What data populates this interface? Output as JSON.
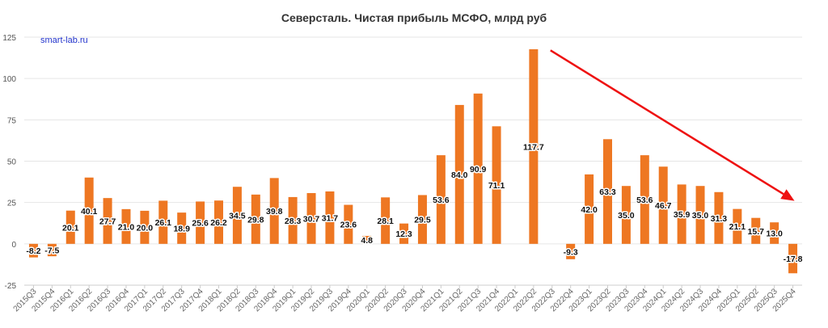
{
  "title": "Северсталь. Чистая прибыль МСФО, млрд руб",
  "watermark": "smart-lab.ru",
  "colors": {
    "bar": "#ee7722",
    "grid": "#e6e6e6",
    "axis": "#cccccc",
    "arrow": "#ee1111"
  },
  "chart_data": {
    "type": "bar",
    "title": "Северсталь. Чистая прибыль МСФО, млрд руб",
    "xlabel": "",
    "ylabel": "",
    "ylim": [
      -25,
      125
    ],
    "yticks": [
      -25,
      0,
      25,
      50,
      75,
      100,
      125
    ],
    "grid": true,
    "categories": [
      "2015Q3",
      "2015Q4",
      "2016Q1",
      "2016Q2",
      "2016Q3",
      "2016Q4",
      "2017Q1",
      "2017Q2",
      "2017Q3",
      "2017Q4",
      "2018Q1",
      "2018Q2",
      "2018Q3",
      "2018Q4",
      "2019Q1",
      "2019Q2",
      "2019Q3",
      "2019Q4",
      "2020Q1",
      "2020Q2",
      "2020Q3",
      "2020Q4",
      "2021Q1",
      "2021Q2",
      "2021Q3",
      "2021Q4",
      "2022Q1",
      "2022Q2",
      "2022Q3",
      "2022Q4",
      "2023Q1",
      "2023Q2",
      "2023Q3",
      "2023Q4",
      "2024Q1",
      "2024Q2",
      "2024Q3",
      "2024Q4",
      "2025Q1",
      "2025Q2",
      "2025Q3",
      "2025Q4"
    ],
    "values": [
      -8.2,
      -7.5,
      20.1,
      40.1,
      27.7,
      21.0,
      20.0,
      26.1,
      18.9,
      25.6,
      26.2,
      34.5,
      29.8,
      39.8,
      28.3,
      30.7,
      31.7,
      23.6,
      4.8,
      28.1,
      12.3,
      29.5,
      53.6,
      84.0,
      90.9,
      71.1,
      null,
      117.7,
      null,
      -9.3,
      42.0,
      63.3,
      35.0,
      53.6,
      46.7,
      35.9,
      35.0,
      31.3,
      21.1,
      15.7,
      13.0,
      -17.8
    ],
    "labels": [
      "-8.2",
      "-7.5",
      "20.1",
      "40.1",
      "27.7",
      "21.0",
      "20.0",
      "26.1",
      "18.9",
      "25.6",
      "26.2",
      "34.5",
      "29.8",
      "39.8",
      "28.3",
      "30.7",
      "31.7",
      "23.6",
      "4.8",
      "28.1",
      "12.3",
      "29.5",
      "53.6",
      "84.0",
      "90.9",
      "71.1",
      "",
      "117.7",
      "",
      "-9.3",
      "42.0",
      "63.3",
      "35.0",
      "53.6",
      "46.7",
      "35.9",
      "35.0",
      "31.3",
      "21.1",
      "15.7",
      "13.0",
      "-17.8"
    ],
    "annotations": [
      {
        "type": "arrow",
        "description": "downward trend arrow",
        "from": {
          "x": "2022Q3",
          "y": 117
        },
        "to": {
          "x": "2025Q4",
          "y": 26
        }
      }
    ]
  }
}
